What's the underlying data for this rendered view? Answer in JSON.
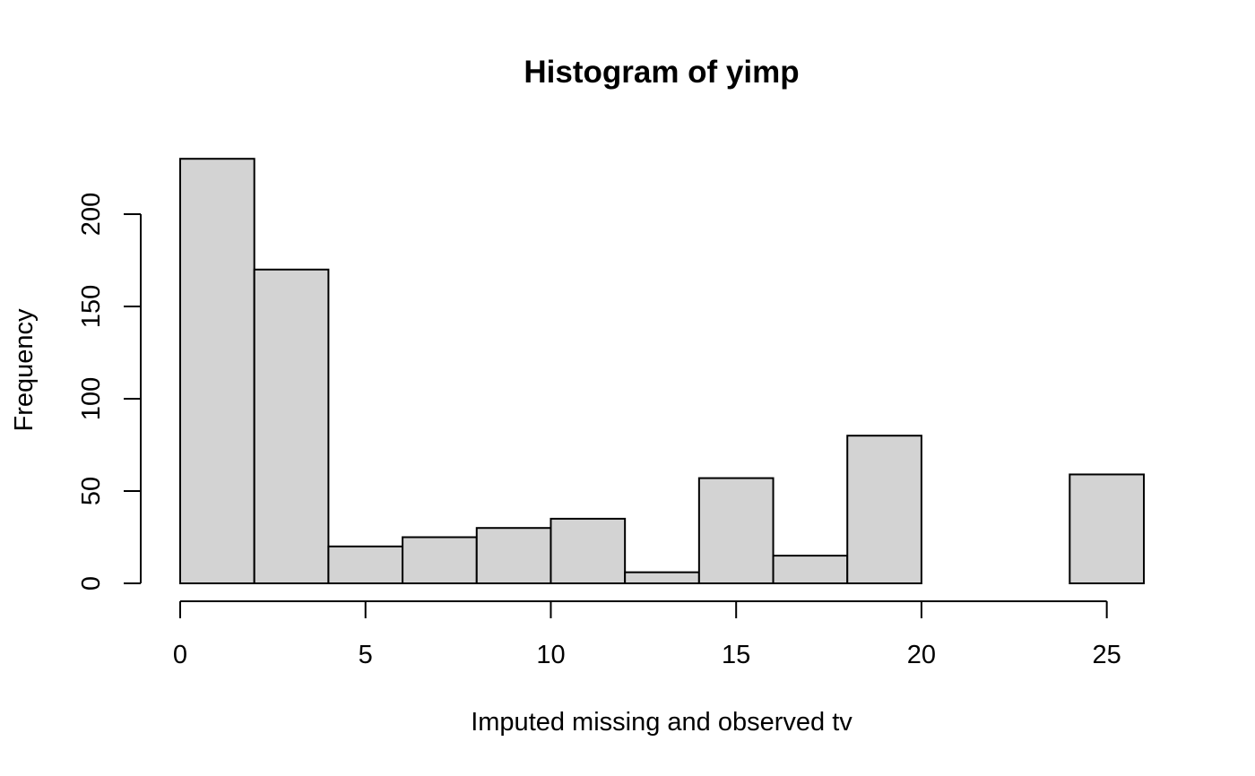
{
  "chart_data": {
    "type": "bar",
    "subtype": "histogram",
    "title": "Histogram of yimp",
    "xlabel": "Imputed missing and observed tv",
    "ylabel": "Frequency",
    "bins": [
      {
        "x0": 0,
        "x1": 2,
        "count": 230
      },
      {
        "x0": 2,
        "x1": 4,
        "count": 170
      },
      {
        "x0": 4,
        "x1": 6,
        "count": 20
      },
      {
        "x0": 6,
        "x1": 8,
        "count": 25
      },
      {
        "x0": 8,
        "x1": 10,
        "count": 30
      },
      {
        "x0": 10,
        "x1": 12,
        "count": 35
      },
      {
        "x0": 12,
        "x1": 14,
        "count": 6
      },
      {
        "x0": 14,
        "x1": 16,
        "count": 57
      },
      {
        "x0": 16,
        "x1": 18,
        "count": 15
      },
      {
        "x0": 18,
        "x1": 20,
        "count": 80
      },
      {
        "x0": 20,
        "x1": 22,
        "count": 0
      },
      {
        "x0": 22,
        "x1": 24,
        "count": 0
      },
      {
        "x0": 24,
        "x1": 26,
        "count": 59
      }
    ],
    "xlim": [
      0,
      26
    ],
    "ylim": [
      0,
      230
    ],
    "x_ticks": [
      0,
      5,
      10,
      15,
      20,
      25
    ],
    "x_tick_labels": [
      "0",
      "5",
      "10",
      "15",
      "20",
      "25"
    ],
    "y_ticks": [
      0,
      50,
      100,
      150,
      200
    ],
    "y_tick_labels": [
      "0",
      "50",
      "100",
      "150",
      "200"
    ],
    "bar_color": "#d3d3d3",
    "edge_color": "#000000",
    "grid": false,
    "legend": "none"
  }
}
